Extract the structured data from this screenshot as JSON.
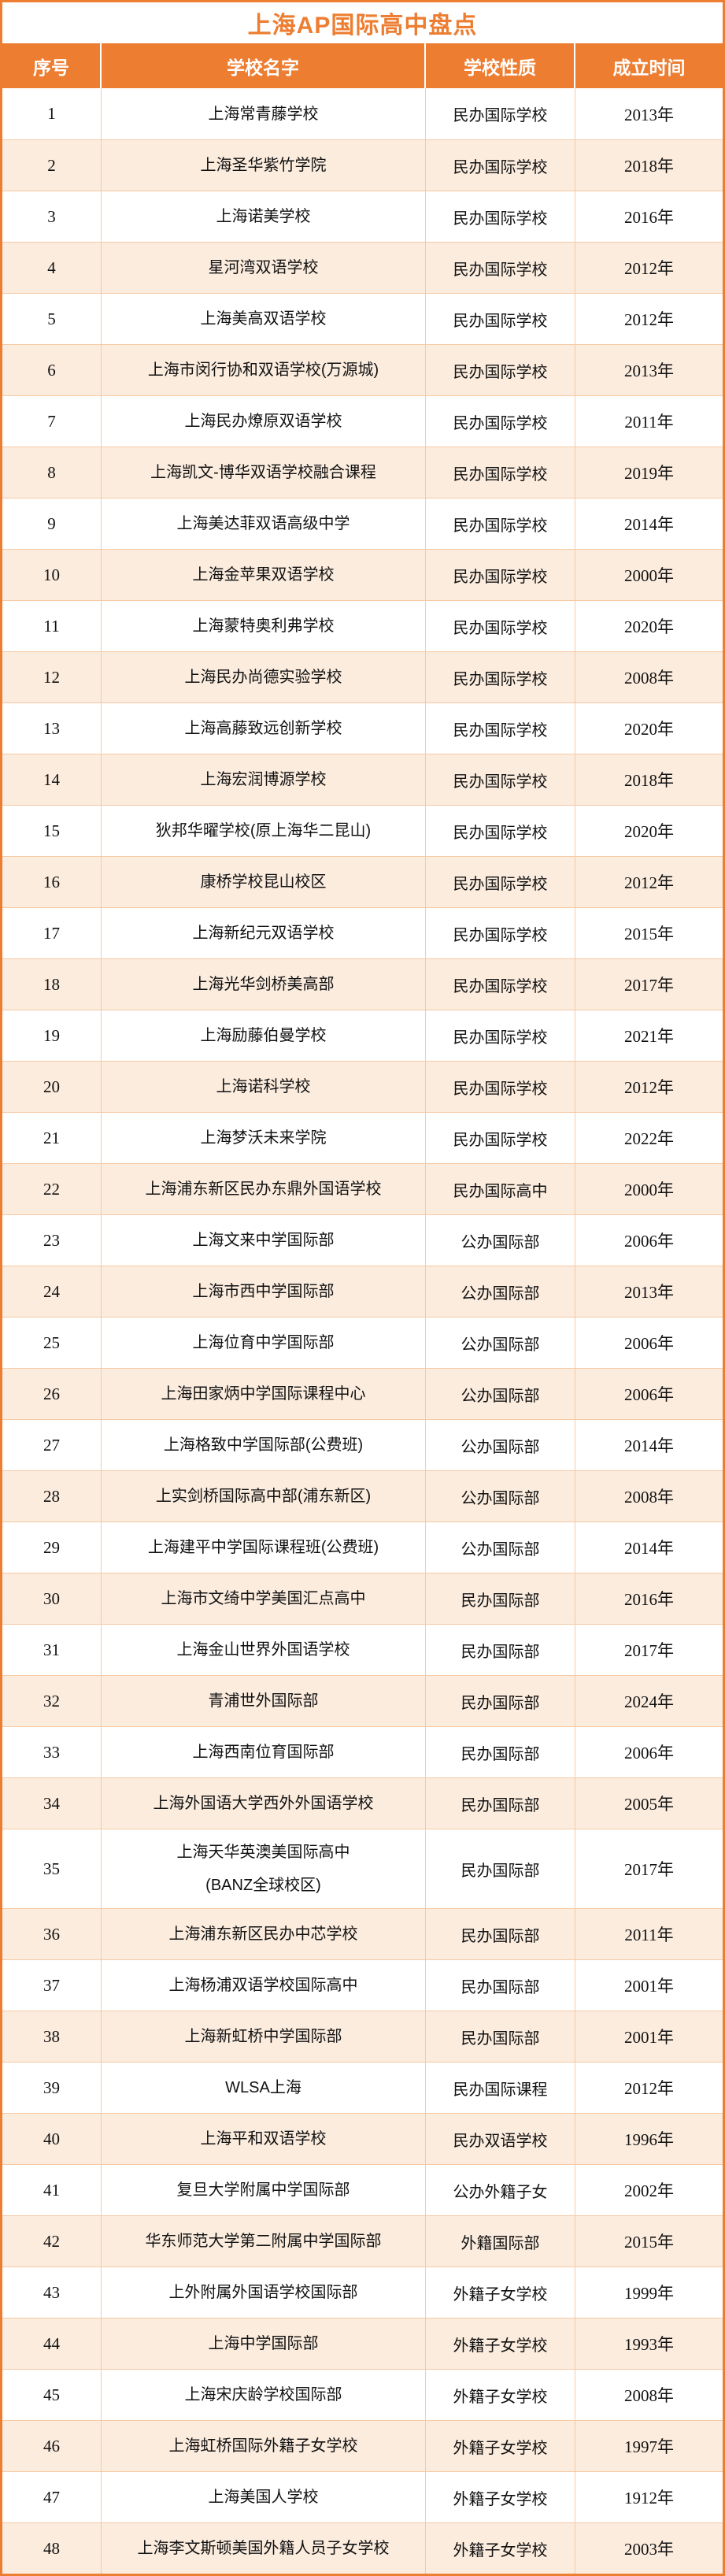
{
  "title": "上海AP国际高中盘点",
  "colors": {
    "accent_orange": "#ED7D31",
    "row_alternate": "#FBECDE",
    "grid_line": "#F6C9A4",
    "header_text": "#FFFFFF",
    "body_text": "#111111"
  },
  "table": {
    "headers": [
      "序号",
      "学校名字",
      "学校性质",
      "成立时间"
    ],
    "rows": [
      {
        "index": "1",
        "name": "上海常青藤学校",
        "type": "民办国际学校",
        "year": "2013年"
      },
      {
        "index": "2",
        "name": "上海圣华紫竹学院",
        "type": "民办国际学校",
        "year": "2018年"
      },
      {
        "index": "3",
        "name": "上海诺美学校",
        "type": "民办国际学校",
        "year": "2016年"
      },
      {
        "index": "4",
        "name": "星河湾双语学校",
        "type": "民办国际学校",
        "year": "2012年"
      },
      {
        "index": "5",
        "name": "上海美高双语学校",
        "type": "民办国际学校",
        "year": "2012年"
      },
      {
        "index": "6",
        "name": "上海市闵行协和双语学校(万源城)",
        "type": "民办国际学校",
        "year": "2013年"
      },
      {
        "index": "7",
        "name": "上海民办燎原双语学校",
        "type": "民办国际学校",
        "year": "2011年"
      },
      {
        "index": "8",
        "name": "上海凯文-博华双语学校融合课程",
        "type": "民办国际学校",
        "year": "2019年"
      },
      {
        "index": "9",
        "name": "上海美达菲双语高级中学",
        "type": "民办国际学校",
        "year": "2014年"
      },
      {
        "index": "10",
        "name": "上海金苹果双语学校",
        "type": "民办国际学校",
        "year": "2000年"
      },
      {
        "index": "11",
        "name": "上海蒙特奥利弗学校",
        "type": "民办国际学校",
        "year": "2020年"
      },
      {
        "index": "12",
        "name": "上海民办尚德实验学校",
        "type": "民办国际学校",
        "year": "2008年"
      },
      {
        "index": "13",
        "name": "上海高藤致远创新学校",
        "type": "民办国际学校",
        "year": "2020年"
      },
      {
        "index": "14",
        "name": "上海宏润博源学校",
        "type": "民办国际学校",
        "year": "2018年"
      },
      {
        "index": "15",
        "name": "狄邦华曜学校(原上海华二昆山)",
        "type": "民办国际学校",
        "year": "2020年"
      },
      {
        "index": "16",
        "name": "康桥学校昆山校区",
        "type": "民办国际学校",
        "year": "2012年"
      },
      {
        "index": "17",
        "name": "上海新纪元双语学校",
        "type": "民办国际学校",
        "year": "2015年"
      },
      {
        "index": "18",
        "name": "上海光华剑桥美高部",
        "type": "民办国际学校",
        "year": "2017年"
      },
      {
        "index": "19",
        "name": "上海励藤伯曼学校",
        "type": "民办国际学校",
        "year": "2021年"
      },
      {
        "index": "20",
        "name": "上海诺科学校",
        "type": "民办国际学校",
        "year": "2012年"
      },
      {
        "index": "21",
        "name": "上海梦沃未来学院",
        "type": "民办国际学校",
        "year": "2022年"
      },
      {
        "index": "22",
        "name": "上海浦东新区民办东鼎外国语学校",
        "type": "民办国际高中",
        "year": "2000年"
      },
      {
        "index": "23",
        "name": "上海文来中学国际部",
        "type": "公办国际部",
        "year": "2006年"
      },
      {
        "index": "24",
        "name": "上海市西中学国际部",
        "type": "公办国际部",
        "year": "2013年"
      },
      {
        "index": "25",
        "name": "上海位育中学国际部",
        "type": "公办国际部",
        "year": "2006年"
      },
      {
        "index": "26",
        "name": "上海田家炳中学国际课程中心",
        "type": "公办国际部",
        "year": "2006年"
      },
      {
        "index": "27",
        "name": "上海格致中学国际部(公费班)",
        "type": "公办国际部",
        "year": "2014年"
      },
      {
        "index": "28",
        "name": "上实剑桥国际高中部(浦东新区)",
        "type": "公办国际部",
        "year": "2008年"
      },
      {
        "index": "29",
        "name": "上海建平中学国际课程班(公费班)",
        "type": "公办国际部",
        "year": "2014年"
      },
      {
        "index": "30",
        "name": "上海市文绮中学美国汇点高中",
        "type": "民办国际部",
        "year": "2016年"
      },
      {
        "index": "31",
        "name": "上海金山世界外国语学校",
        "type": "民办国际部",
        "year": "2017年"
      },
      {
        "index": "32",
        "name": "青浦世外国际部",
        "type": "民办国际部",
        "year": "2024年"
      },
      {
        "index": "33",
        "name": "上海西南位育国际部",
        "type": "民办国际部",
        "year": "2006年"
      },
      {
        "index": "34",
        "name": "上海外国语大学西外外国语学校",
        "type": "民办国际部",
        "year": "2005年"
      },
      {
        "index": "35",
        "name": "上海天华英澳美国际高中\n(BANZ全球校区)",
        "type": "民办国际部",
        "year": "2017年"
      },
      {
        "index": "36",
        "name": "上海浦东新区民办中芯学校",
        "type": "民办国际部",
        "year": "2011年"
      },
      {
        "index": "37",
        "name": "上海杨浦双语学校国际高中",
        "type": "民办国际部",
        "year": "2001年"
      },
      {
        "index": "38",
        "name": "上海新虹桥中学国际部",
        "type": "民办国际部",
        "year": "2001年"
      },
      {
        "index": "39",
        "name": "WLSA上海",
        "type": "民办国际课程",
        "year": "2012年"
      },
      {
        "index": "40",
        "name": "上海平和双语学校",
        "type": "民办双语学校",
        "year": "1996年"
      },
      {
        "index": "41",
        "name": "复旦大学附属中学国际部",
        "type": "公办外籍子女",
        "year": "2002年"
      },
      {
        "index": "42",
        "name": "华东师范大学第二附属中学国际部",
        "type": "外籍国际部",
        "year": "2015年"
      },
      {
        "index": "43",
        "name": "上外附属外国语学校国际部",
        "type": "外籍子女学校",
        "year": "1999年"
      },
      {
        "index": "44",
        "name": "上海中学国际部",
        "type": "外籍子女学校",
        "year": "1993年"
      },
      {
        "index": "45",
        "name": "上海宋庆龄学校国际部",
        "type": "外籍子女学校",
        "year": "2008年"
      },
      {
        "index": "46",
        "name": "上海虹桥国际外籍子女学校",
        "type": "外籍子女学校",
        "year": "1997年"
      },
      {
        "index": "47",
        "name": "上海美国人学校",
        "type": "外籍子女学校",
        "year": "1912年"
      },
      {
        "index": "48",
        "name": "上海李文斯顿美国外籍人员子女学校",
        "type": "外籍子女学校",
        "year": "2003年"
      }
    ]
  }
}
